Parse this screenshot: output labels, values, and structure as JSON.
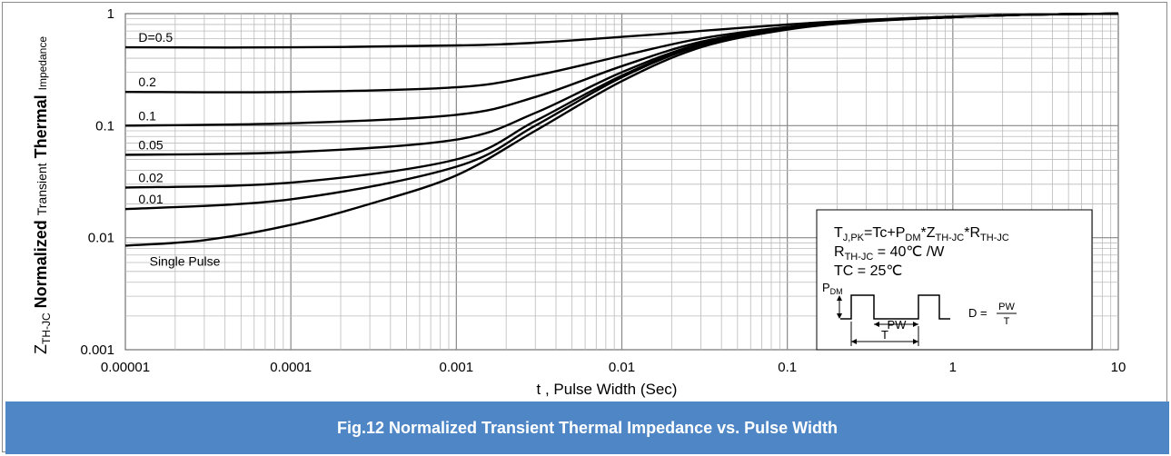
{
  "caption": "Fig.12 Normalized Transient Thermal Impedance vs. Pulse Width",
  "colors": {
    "caption_bg": "#4f86c6",
    "caption_text": "#ffffff",
    "curve": "#000000",
    "grid": "#bbbbbb"
  },
  "chart_data": {
    "type": "line",
    "xscale": "log",
    "yscale": "log",
    "xlim": [
      1e-05,
      10
    ],
    "ylim": [
      0.001,
      1
    ],
    "grid": true,
    "xlabel": "t , Pulse Width (Sec)",
    "ylabel": {
      "main": "Z",
      "sub": "TH-JC",
      "bold": "Normalized",
      "small": "Transient",
      "bold2": "Thermal",
      "small2": "Impedance"
    },
    "x_tick_labels": [
      "0.00001",
      "0.0001",
      "0.001",
      "0.01",
      "0.1",
      "1",
      "10"
    ],
    "y_tick_labels": [
      "0.001",
      "0.01",
      "0.1",
      "1"
    ],
    "x_ticks": [
      1e-05,
      0.0001,
      0.001,
      0.01,
      0.1,
      1,
      10
    ],
    "y_ticks": [
      0.001,
      0.01,
      0.1,
      1
    ],
    "series": [
      {
        "name": "D=0.5",
        "x": [
          1e-05,
          0.0001,
          0.001,
          0.003,
          0.01,
          0.03,
          0.1,
          0.3,
          1,
          3,
          10
        ],
        "y": [
          0.5,
          0.5,
          0.52,
          0.55,
          0.62,
          0.7,
          0.8,
          0.88,
          0.94,
          0.98,
          1.0
        ]
      },
      {
        "name": "0.2",
        "x": [
          1e-05,
          0.0001,
          0.001,
          0.003,
          0.01,
          0.03,
          0.1,
          0.3,
          1,
          3,
          10
        ],
        "y": [
          0.2,
          0.2,
          0.22,
          0.28,
          0.42,
          0.6,
          0.76,
          0.87,
          0.94,
          0.98,
          1.0
        ]
      },
      {
        "name": "0.1",
        "x": [
          1e-05,
          0.0001,
          0.001,
          0.003,
          0.01,
          0.03,
          0.1,
          0.3,
          1,
          3,
          10
        ],
        "y": [
          0.1,
          0.105,
          0.125,
          0.18,
          0.34,
          0.56,
          0.75,
          0.86,
          0.93,
          0.98,
          1.0
        ]
      },
      {
        "name": "0.05",
        "x": [
          1e-05,
          0.0001,
          0.001,
          0.003,
          0.01,
          0.03,
          0.1,
          0.3,
          1,
          3,
          10
        ],
        "y": [
          0.055,
          0.058,
          0.075,
          0.13,
          0.3,
          0.54,
          0.74,
          0.86,
          0.93,
          0.98,
          1.0
        ]
      },
      {
        "name": "0.02",
        "x": [
          1e-05,
          0.0001,
          0.001,
          0.003,
          0.01,
          0.03,
          0.1,
          0.3,
          1,
          3,
          10
        ],
        "y": [
          0.028,
          0.031,
          0.05,
          0.11,
          0.28,
          0.53,
          0.74,
          0.86,
          0.93,
          0.98,
          1.0
        ]
      },
      {
        "name": "0.01",
        "x": [
          1e-05,
          0.0001,
          0.001,
          0.003,
          0.01,
          0.03,
          0.1,
          0.3,
          1,
          3,
          10
        ],
        "y": [
          0.018,
          0.022,
          0.043,
          0.1,
          0.27,
          0.52,
          0.73,
          0.86,
          0.93,
          0.98,
          1.0
        ]
      },
      {
        "name": "Single Pulse",
        "x": [
          1e-05,
          3e-05,
          0.0001,
          0.0003,
          0.001,
          0.003,
          0.01,
          0.03,
          0.1,
          0.3,
          1,
          3,
          10
        ],
        "y": [
          0.0085,
          0.0095,
          0.013,
          0.02,
          0.036,
          0.09,
          0.25,
          0.5,
          0.72,
          0.85,
          0.93,
          0.98,
          1.0
        ]
      }
    ],
    "curve_labels": [
      {
        "text": "D=0.5",
        "series": "D=0.5"
      },
      {
        "text": "0.2",
        "series": "0.2"
      },
      {
        "text": "0.1",
        "series": "0.1"
      },
      {
        "text": "0.05",
        "series": "0.05"
      },
      {
        "text": "0.02",
        "series": "0.02"
      },
      {
        "text": "0.01",
        "series": "0.01"
      },
      {
        "text": "Single Pulse",
        "series": "Single Pulse"
      }
    ],
    "annotation": {
      "lines": [
        {
          "parts": [
            [
              "T",
              ""
            ],
            [
              "J,PK",
              "sub"
            ],
            [
              "=Tc+P",
              ""
            ],
            [
              "DM",
              "sub"
            ],
            [
              "*Z",
              ""
            ],
            [
              "TH-JC",
              "sub"
            ],
            [
              "*R",
              ""
            ],
            [
              "TH-JC",
              "sub"
            ]
          ]
        },
        {
          "parts": [
            [
              "R",
              ""
            ],
            [
              "TH-JC",
              "sub"
            ],
            [
              " = 40℃ /W",
              ""
            ]
          ]
        },
        {
          "parts": [
            [
              "TC = 25℃",
              ""
            ]
          ]
        }
      ],
      "pdm_label": "P",
      "pdm_sub": "DM",
      "pw_label": "PW",
      "t_label": "T",
      "d_formula": "D =",
      "d_num": "PW",
      "d_den": "T"
    }
  }
}
